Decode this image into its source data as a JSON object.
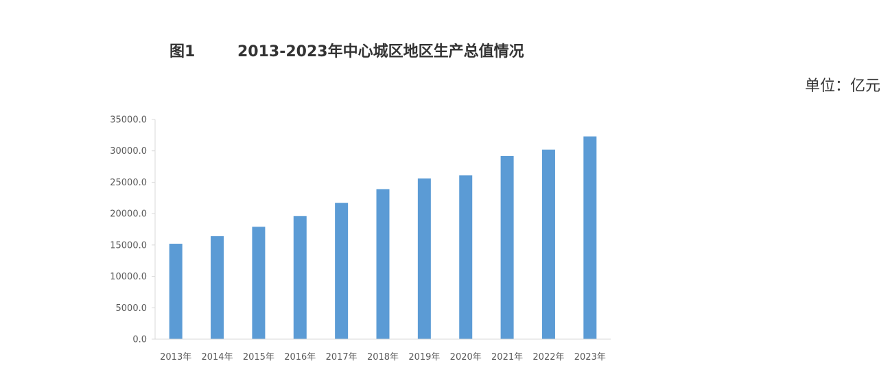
{
  "header": {
    "figure_label": "图1",
    "title": "2013-2023年中心城区地区生产总值情况",
    "unit": "单位：亿元"
  },
  "colors": {
    "bar": "#5b9bd5",
    "axis": "#d9d9d9",
    "text": "#595959"
  },
  "chart_data": {
    "type": "bar",
    "categories": [
      "2013年",
      "2014年",
      "2015年",
      "2016年",
      "2017年",
      "2018年",
      "2019年",
      "2020年",
      "2021年",
      "2022年",
      "2023年"
    ],
    "values": [
      15200,
      16400,
      17900,
      19600,
      21700,
      23900,
      25600,
      26100,
      29200,
      30200,
      32300
    ],
    "ylim": [
      0,
      35000
    ],
    "yticks": [
      "0.0",
      "5000.0",
      "10000.0",
      "15000.0",
      "20000.0",
      "25000.0",
      "30000.0",
      "35000.0"
    ],
    "grid": false,
    "title": "2013-2023年中心城区地区生产总值情况"
  }
}
